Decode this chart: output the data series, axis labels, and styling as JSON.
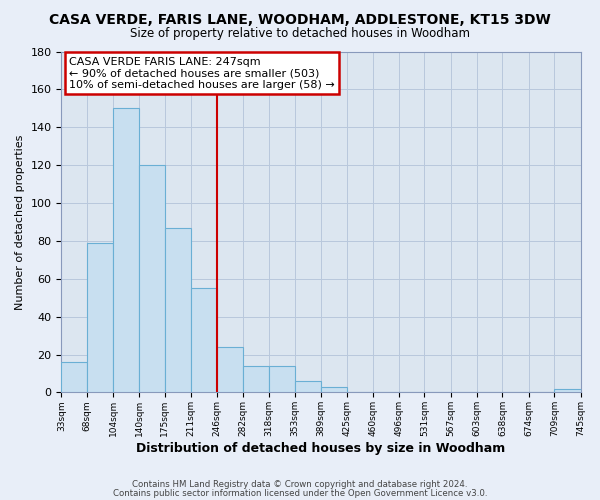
{
  "title": "CASA VERDE, FARIS LANE, WOODHAM, ADDLESTONE, KT15 3DW",
  "subtitle": "Size of property relative to detached houses in Woodham",
  "xlabel": "Distribution of detached houses by size in Woodham",
  "ylabel": "Number of detached properties",
  "bar_edges": [
    33,
    68,
    104,
    140,
    175,
    211,
    246,
    282,
    318,
    353,
    389,
    425,
    460,
    496,
    531,
    567,
    603,
    638,
    674,
    709,
    745
  ],
  "bar_heights": [
    16,
    79,
    150,
    120,
    87,
    55,
    24,
    14,
    14,
    6,
    3,
    0,
    0,
    0,
    0,
    0,
    0,
    0,
    0,
    2
  ],
  "bar_color": "#c8dff0",
  "bar_edge_color": "#6aafd4",
  "vline_x": 246,
  "vline_color": "#cc0000",
  "annotation_title": "CASA VERDE FARIS LANE: 247sqm",
  "annotation_line1": "← 90% of detached houses are smaller (503)",
  "annotation_line2": "10% of semi-detached houses are larger (58) →",
  "annotation_box_color": "#ffffff",
  "annotation_box_edge": "#cc0000",
  "ylim": [
    0,
    180
  ],
  "yticks": [
    0,
    20,
    40,
    60,
    80,
    100,
    120,
    140,
    160,
    180
  ],
  "tick_labels": [
    "33sqm",
    "68sqm",
    "104sqm",
    "140sqm",
    "175sqm",
    "211sqm",
    "246sqm",
    "282sqm",
    "318sqm",
    "353sqm",
    "389sqm",
    "425sqm",
    "460sqm",
    "496sqm",
    "531sqm",
    "567sqm",
    "603sqm",
    "638sqm",
    "674sqm",
    "709sqm",
    "745sqm"
  ],
  "footer1": "Contains HM Land Registry data © Crown copyright and database right 2024.",
  "footer2": "Contains public sector information licensed under the Open Government Licence v3.0.",
  "background_color": "#e8eef8",
  "plot_bg_color": "#dce6f0",
  "grid_color": "#b8c8dc"
}
